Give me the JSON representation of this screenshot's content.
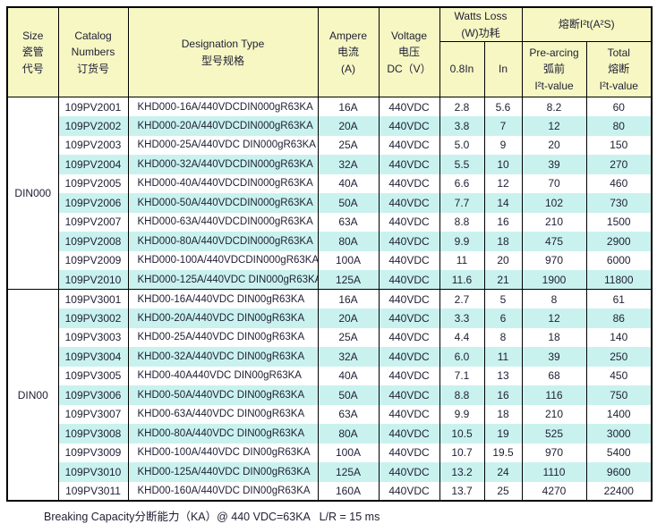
{
  "colors": {
    "header_bg": "#F6F7C3",
    "row_alt_bg": "#C9F2EF",
    "border": "#000000",
    "text": "#1F1F33"
  },
  "table": {
    "header": {
      "size": "Size\n瓷管\n代号",
      "catalog": "Catalog\nNumbers\n订货号",
      "designation": "Designation Type\n型号规格",
      "ampere": "Ampere\n电流\n(A)",
      "voltage": "Voltage\n电压\nDC（V）",
      "watts_loss": "Watts Loss\n(W)功耗",
      "i2t": "熔断I²t(A²S)",
      "sub_0_8_in": "0.8In",
      "sub_in": "In",
      "pre_arcing": "Pre-arcing\n弧前\nI²t-value",
      "total": "Total\n熔断\nI²t-value"
    },
    "groups": [
      {
        "size": "DIN000",
        "rows": [
          [
            "109PV2001",
            "KHD000-16A/440VDCDIN000gR63KA",
            "16A",
            "440VDC",
            "2.8",
            "5.6",
            "8.2",
            "60"
          ],
          [
            "109PV2002",
            "KHD000-20A/440VDCDIN000gR63KA",
            "20A",
            "440VDC",
            "3.8",
            "7",
            "12",
            "80"
          ],
          [
            "109PV2003",
            "KHD000-25A/440VDC DIN000gR63KA",
            "25A",
            "440VDC",
            "5.0",
            "9",
            "20",
            "150"
          ],
          [
            "109PV2004",
            "KHD000-32A/440VDCDIN000gR63KA",
            "32A",
            "440VDC",
            "5.5",
            "10",
            "39",
            "270"
          ],
          [
            "109PV2005",
            "KHD000-40A/440VDCDIN000gR63KA",
            "40A",
            "440VDC",
            "6.6",
            "12",
            "70",
            "460"
          ],
          [
            "109PV2006",
            "KHD000-50A/440VDCDIN000gR63KA",
            "50A",
            "440VDC",
            "7.7",
            "14",
            "102",
            "730"
          ],
          [
            "109PV2007",
            "KHD000-63A/440VDCDIN000gR63KA",
            "63A",
            "440VDC",
            "8.8",
            "16",
            "210",
            "1500"
          ],
          [
            "109PV2008",
            "KHD000-80A/440VDCDIN000gR63KA",
            "80A",
            "440VDC",
            "9.9",
            "18",
            "475",
            "2900"
          ],
          [
            "109PV2009",
            "KHD000-100A/440VDCDIN000gR63KA",
            "100A",
            "440VDC",
            "11",
            "20",
            "970",
            "6000"
          ],
          [
            "109PV2010",
            "KHD000-125A/440VDC DIN000gR63KA",
            "125A",
            "440VDC",
            "11.6",
            "21",
            "1900",
            "11800"
          ]
        ]
      },
      {
        "size": "DIN00",
        "rows": [
          [
            "109PV3001",
            "KHD00-16A/440VDC DIN00gR63KA",
            "16A",
            "440VDC",
            "2.7",
            "5",
            "8",
            "61"
          ],
          [
            "109PV3002",
            "KHD00-20A/440VDC DIN00gR63KA",
            "20A",
            "440VDC",
            "3.3",
            "6",
            "12",
            "86"
          ],
          [
            "109PV3003",
            "KHD00-25A/440VDC DIN00gR63KA",
            "25A",
            "440VDC",
            "4.4",
            "8",
            "18",
            "140"
          ],
          [
            "109PV3004",
            "KHD00-32A/440VDC DIN00gR63KA",
            "32A",
            "440VDC",
            "6.0",
            "11",
            "39",
            "250"
          ],
          [
            "109PV3005",
            "KHD00-40A440VDC DIN00gR63KA",
            "40A",
            "440VDC",
            "7.1",
            "13",
            "68",
            "450"
          ],
          [
            "109PV3006",
            "KHD00-50A/440VDC DIN00gR63KA",
            "50A",
            "440VDC",
            "8.8",
            "16",
            "116",
            "750"
          ],
          [
            "109PV3007",
            "KHD00-63A/440VDC DIN00gR63KA",
            "63A",
            "440VDC",
            "9.9",
            "18",
            "210",
            "1400"
          ],
          [
            "109PV3008",
            "KHD00-80A/440VDC DIN00gR63KA",
            "80A",
            "440VDC",
            "10.5",
            "19",
            "525",
            "3000"
          ],
          [
            "109PV3009",
            "KHD00-100A/440VDC DIN00gR63KA",
            "100A",
            "440VDC",
            "10.7",
            "19.5",
            "970",
            "5400"
          ],
          [
            "109PV3010",
            "KHD00-125A/440VDC DIN00gR63KA",
            "125A",
            "440VDC",
            "13.2",
            "24",
            "1110",
            "9600"
          ],
          [
            "109PV3011",
            "KHD00-160A/440VDC DIN00gR63KA",
            "160A",
            "440VDC",
            "13.7",
            "25",
            "4270",
            "22400"
          ]
        ]
      }
    ]
  },
  "footer": {
    "note": "Breaking Capacity分断能力（KA）@ 440 VDC=63KA   L/R = 15 ms"
  }
}
